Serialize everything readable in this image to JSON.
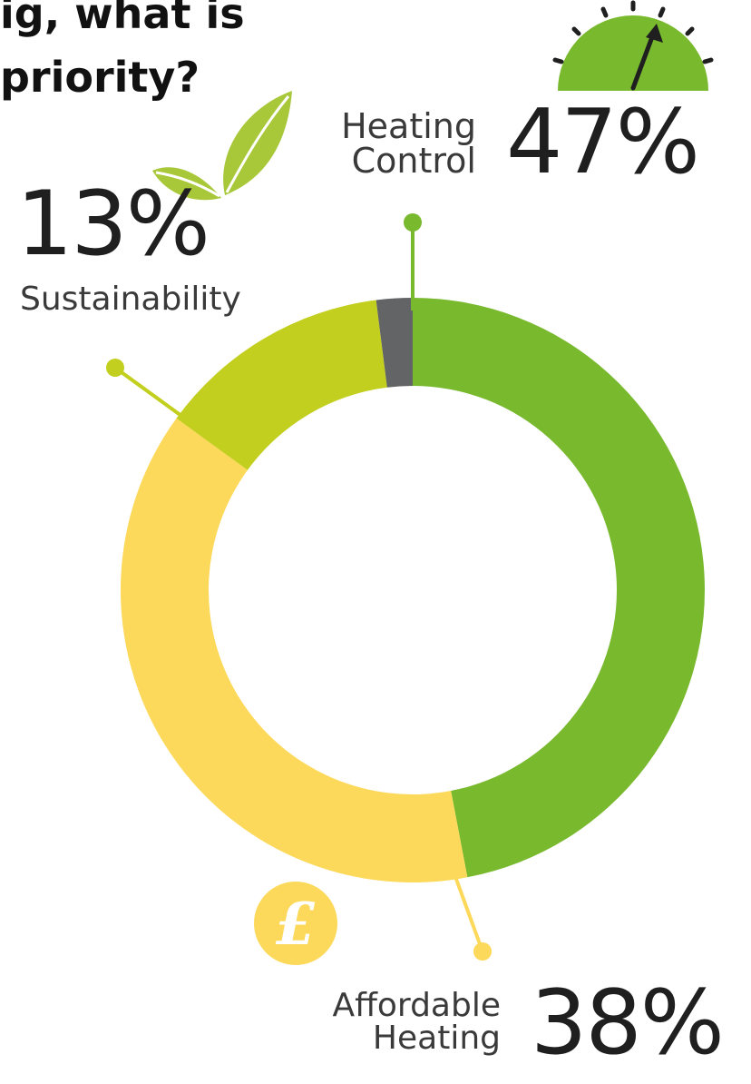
{
  "title_lines": [
    "ig, what is",
    "priority?"
  ],
  "chart_data": {
    "type": "pie",
    "style": "donut",
    "slices": [
      {
        "label_lines": [
          "Heating",
          "Control"
        ],
        "percent_label": "47%",
        "value": 47,
        "color": "#78b92e"
      },
      {
        "label_lines": [
          "Affordable",
          "Heating"
        ],
        "percent_label": "38%",
        "value": 38,
        "color": "#fcd95a"
      },
      {
        "label_lines": [
          "Sustainability"
        ],
        "percent_label": "13%",
        "value": 13,
        "color": "#c3cf1e"
      },
      {
        "label_lines": [],
        "percent_label": "",
        "value": 2,
        "color": "#636466"
      }
    ],
    "legend": "none",
    "icons": [
      "gauge-icon",
      "leaf-icon",
      "pound-coin-icon"
    ]
  }
}
